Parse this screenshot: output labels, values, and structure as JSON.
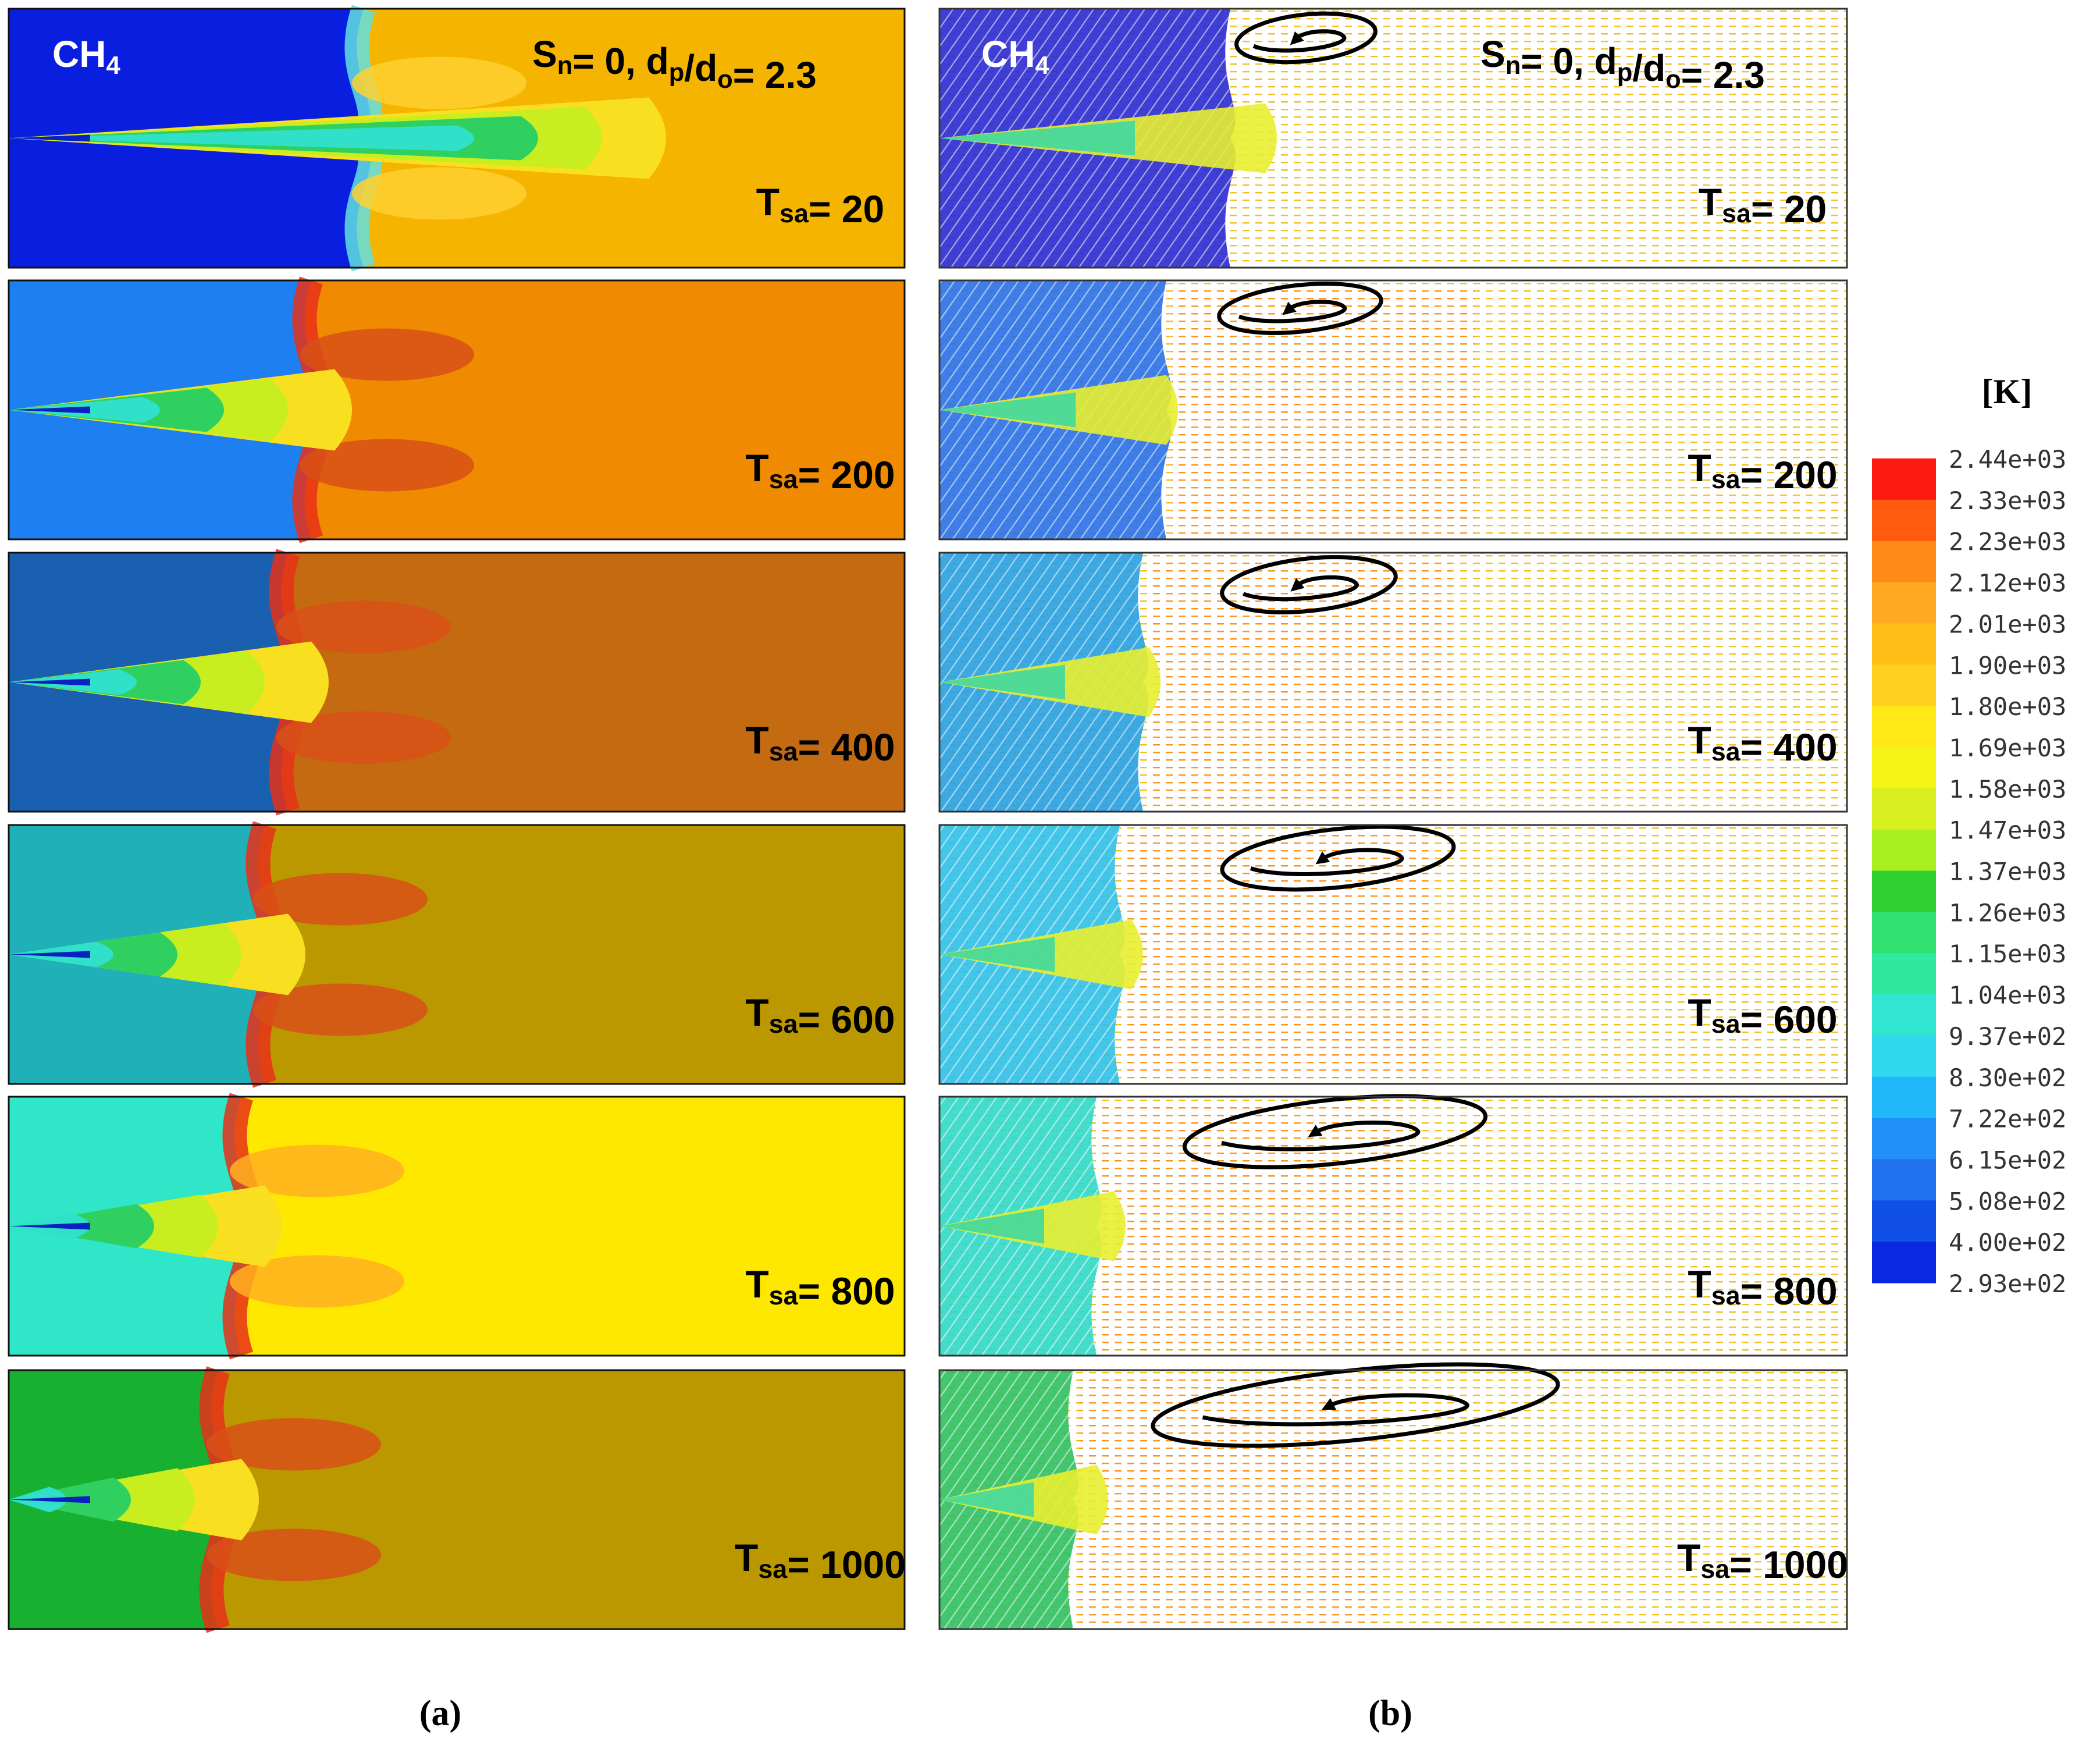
{
  "figure": {
    "species": "CH",
    "species_sub": "4",
    "condition": {
      "s": "S",
      "s_sub": "n",
      "eq1": "= 0, d",
      "p_sub": "p",
      "slash": "/d",
      "o_sub": "o",
      "eq2": "= 2.3"
    },
    "t_prefix": "T",
    "t_sub": "sa",
    "t_eq": "= ",
    "t_values": [
      "20",
      "200",
      "400",
      "600",
      "800",
      "1000"
    ],
    "panel_a_bg_colors": [
      "#f5b400",
      "#f08a00",
      "#c46a10",
      "#bc9800",
      "#ffe800",
      "#bc9800"
    ],
    "panel_a_inlet_colors": [
      "#0a1ee0",
      "#1e80f0",
      "#1a60b0",
      "#20b0b8",
      "#30e6c8",
      "#18b030"
    ],
    "panel_b_inlet_colors": [
      "#2a2ad0",
      "#2a70e6",
      "#28a0e0",
      "#30c0e8",
      "#30d8c8",
      "#30c060"
    ],
    "caption_a": "(a)",
    "caption_b": "(b)"
  },
  "colorbar": {
    "unit": "[K]",
    "ticks": [
      "2.44e+03",
      "2.33e+03",
      "2.23e+03",
      "2.12e+03",
      "2.01e+03",
      "1.90e+03",
      "1.80e+03",
      "1.69e+03",
      "1.58e+03",
      "1.47e+03",
      "1.37e+03",
      "1.26e+03",
      "1.15e+03",
      "1.04e+03",
      "9.37e+02",
      "8.30e+02",
      "7.22e+02",
      "6.15e+02",
      "5.08e+02",
      "4.00e+02",
      "2.93e+02"
    ],
    "colors": [
      "#ff1a10",
      "#ff5a10",
      "#ff8a18",
      "#ffa820",
      "#ffbe18",
      "#ffd020",
      "#ffe818",
      "#f4f418",
      "#d8f020",
      "#a8ee20",
      "#30d030",
      "#30e070",
      "#30e8a0",
      "#30e6d0",
      "#30d8f0",
      "#20b8f8",
      "#2090f8",
      "#2070f0",
      "#1050e8",
      "#0a28e0"
    ]
  }
}
